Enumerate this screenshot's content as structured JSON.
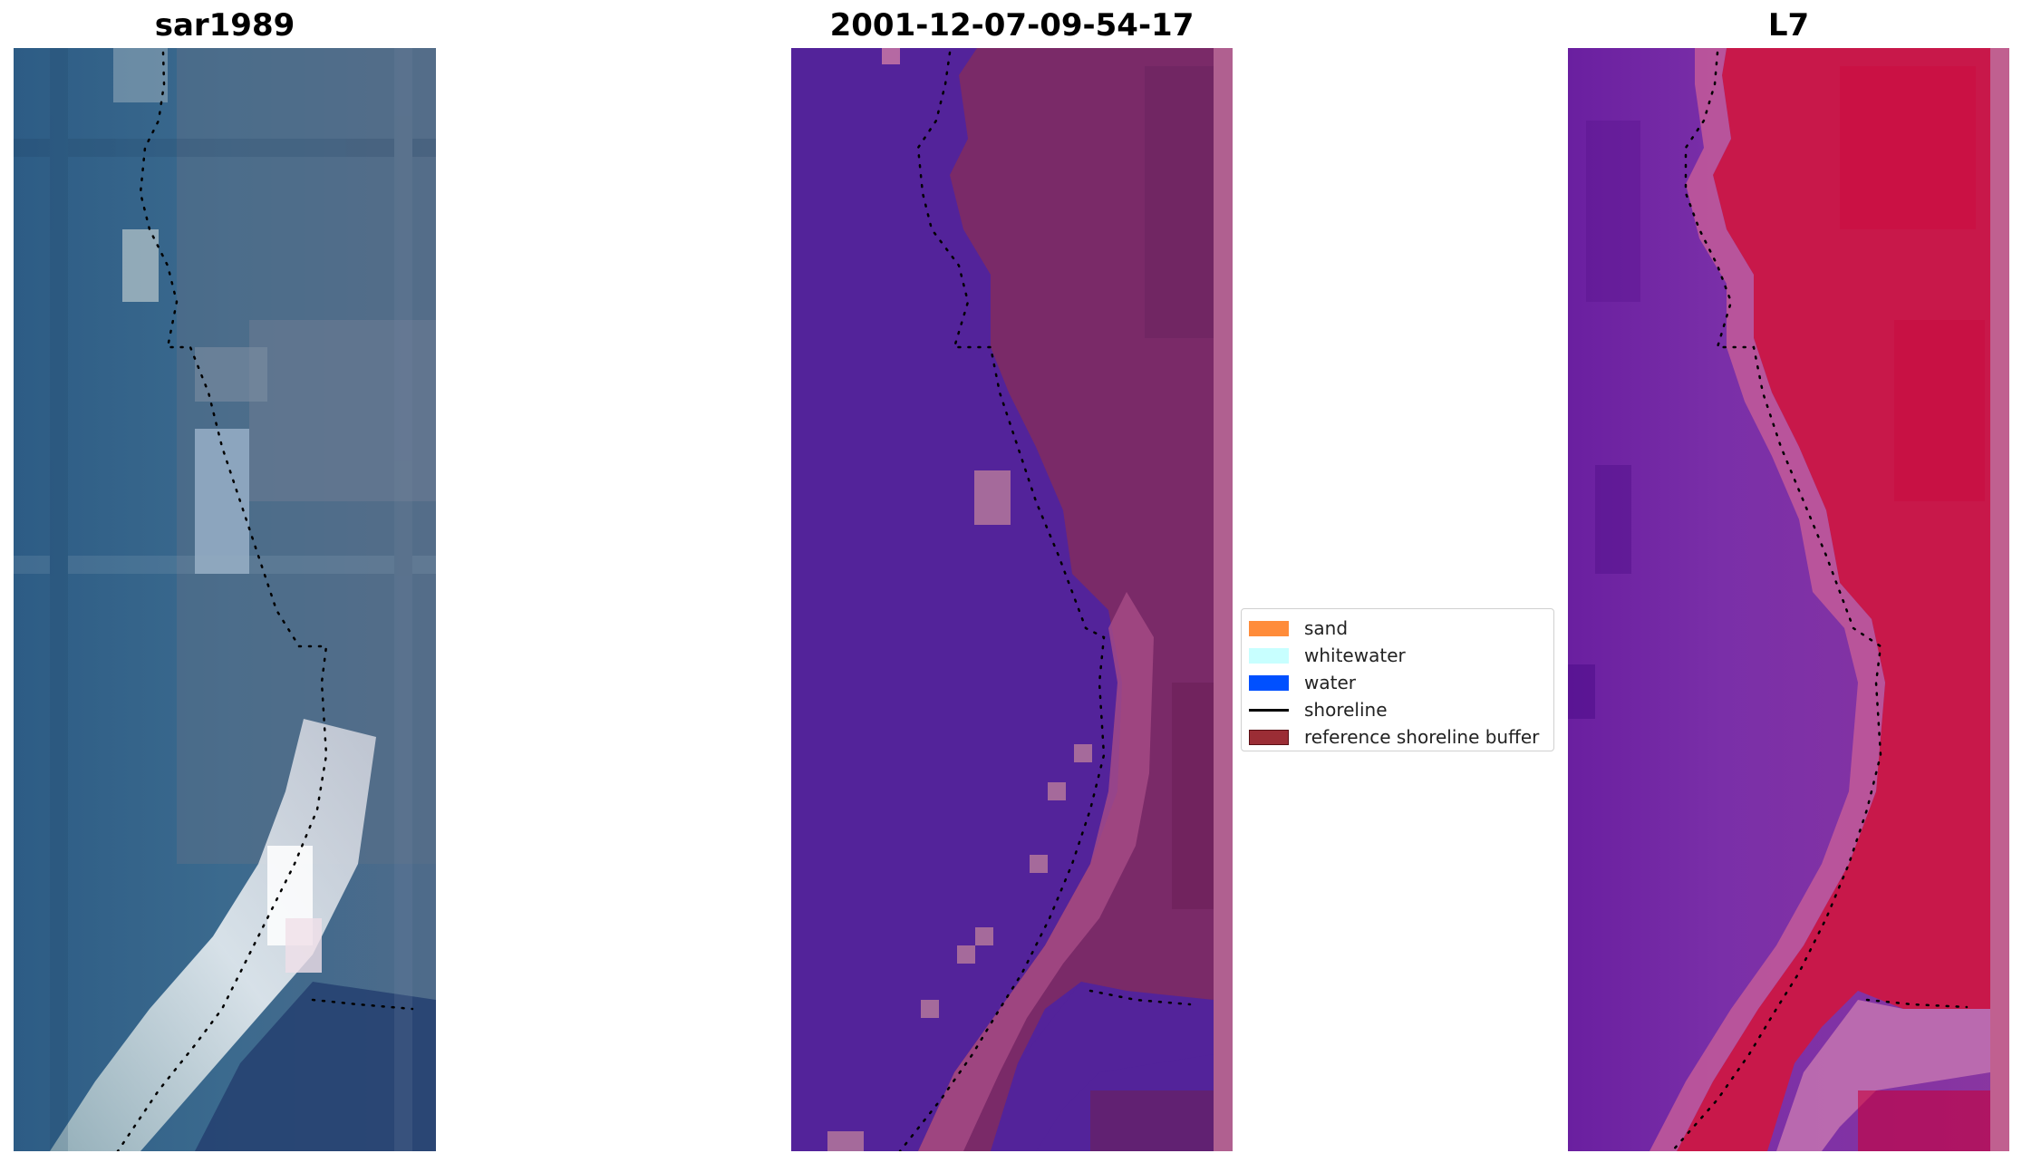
{
  "panels": [
    {
      "id": "rgb",
      "title": "sar1989"
    },
    {
      "id": "classified",
      "title": "2001-12-07-09-54-17"
    },
    {
      "id": "sensor",
      "title": "L7"
    }
  ],
  "legend": {
    "items": [
      {
        "label": "sand",
        "color": "#ff8c3a",
        "kind": "patch"
      },
      {
        "label": "whitewater",
        "color": "#c8ffff",
        "kind": "patch"
      },
      {
        "label": "water",
        "color": "#0050ff",
        "kind": "patch"
      },
      {
        "label": "shoreline",
        "color": "#000000",
        "kind": "line"
      },
      {
        "label": "reference shoreline buffer",
        "color": "#9b2d35",
        "kind": "patch",
        "edge": "#5a0f15"
      }
    ]
  },
  "colors": {
    "water_class": "#53239a",
    "land_class": "#7a2a68",
    "buffer_edge": "#b06090",
    "shoreline_dots": "#000000"
  }
}
